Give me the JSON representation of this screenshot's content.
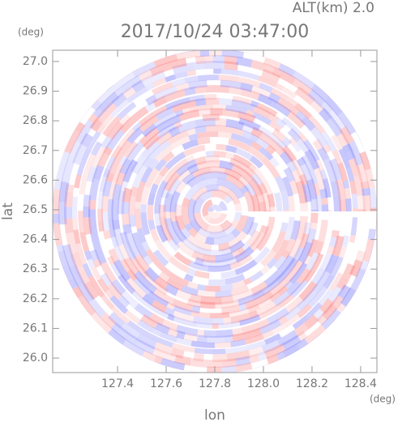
{
  "chart_data": {
    "type": "radar",
    "title": "2017/10/24 03:47:00",
    "subtitle": "ALT(km) 2.0",
    "xlabel": "lon",
    "ylabel": "lat",
    "xunit": "(deg)",
    "yunit": "(deg)",
    "xlim": [
      127.133,
      128.467
    ],
    "ylim": [
      25.951,
      27.038
    ],
    "xticks": [
      127.4,
      127.6,
      127.8,
      {
        "value": 128.0,
        "label": "128.0"
      },
      128.2,
      128.4
    ],
    "yticks": [
      {
        "value": 26.0,
        "label": "26.0"
      },
      26.1,
      26.2,
      26.3,
      26.4,
      26.5,
      26.6,
      26.7,
      26.8,
      26.9,
      {
        "value": 27.0,
        "label": "27.0"
      }
    ]
  }
}
